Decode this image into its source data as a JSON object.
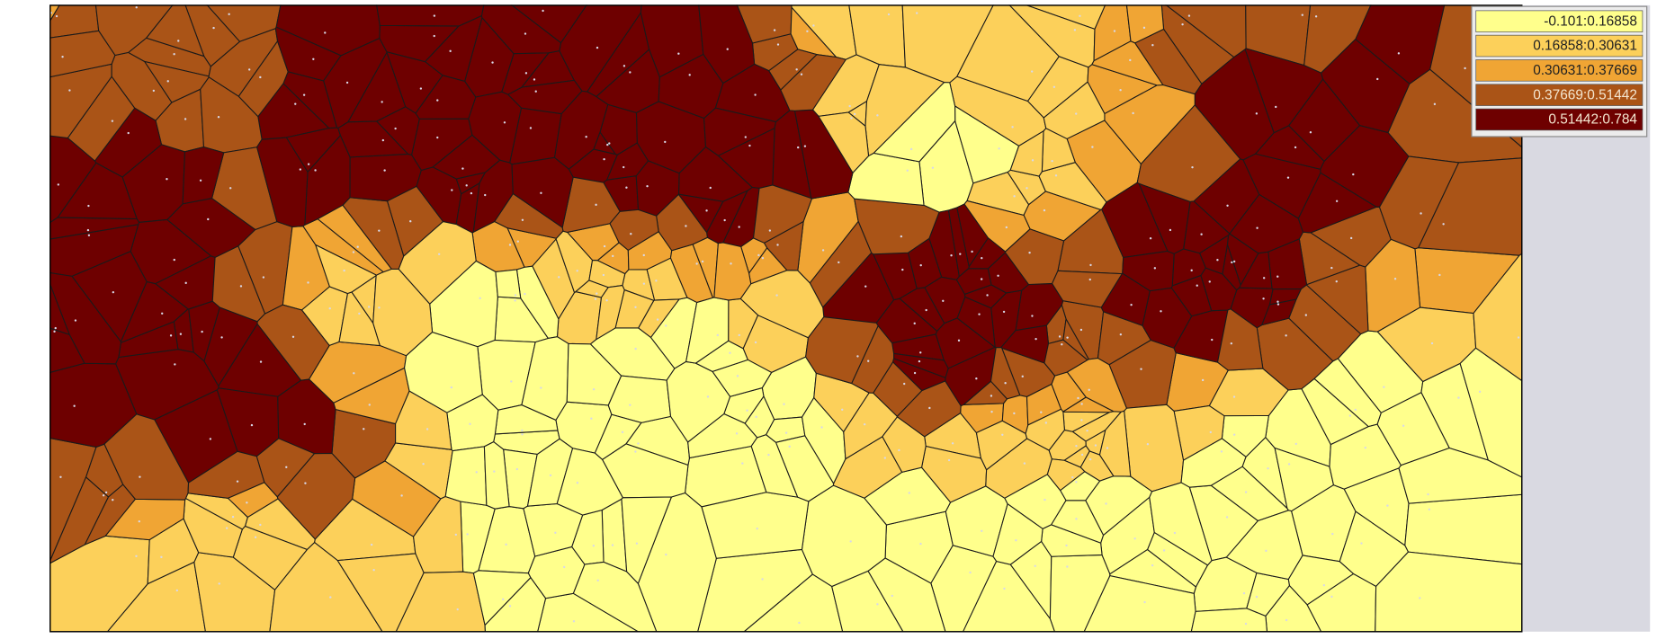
{
  "legend": {
    "items": [
      {
        "label": "-0.101:0.16858",
        "color": "#ffff8c"
      },
      {
        "label": "0.16858:0.30631",
        "color": "#fcd05a"
      },
      {
        "label": "0.30631:0.37669",
        "color": "#f0a534"
      },
      {
        "label": "0.37669:0.51442",
        "color": "#aa5417"
      },
      {
        "label": "0.51442:0.784",
        "color": "#6e0000"
      }
    ]
  }
}
